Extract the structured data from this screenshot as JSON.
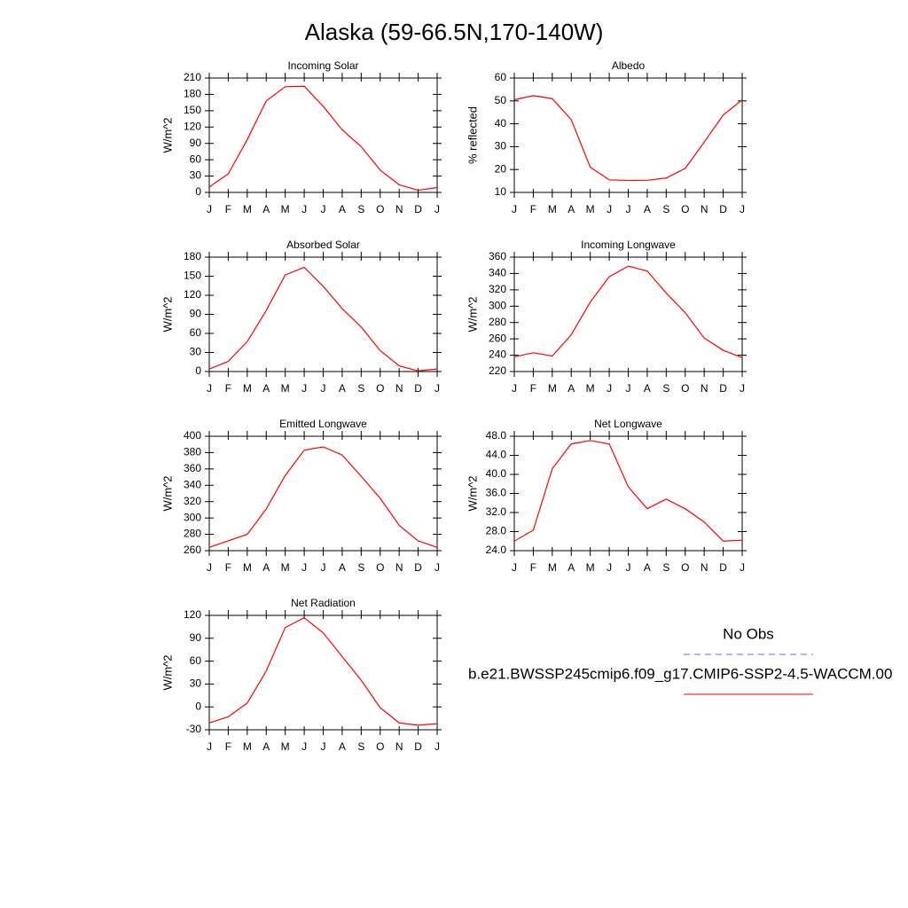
{
  "title": "Alaska (59-66.5N,170-140W)",
  "legend": [
    {
      "label": "No Obs",
      "color": "#6666ff",
      "dash": true
    },
    {
      "label": "b.e21.BWSSP245cmip6.f09_g17.CMIP6-SSP2-4.5-WACCM.00",
      "color": "#ff0000",
      "dash": false
    }
  ],
  "chart_data": [
    {
      "type": "line",
      "title": "Incoming Solar",
      "ylabel": "W/m^2",
      "categories": [
        "J",
        "F",
        "M",
        "A",
        "M",
        "J",
        "J",
        "A",
        "S",
        "O",
        "N",
        "D",
        "J"
      ],
      "color": "#ff0000",
      "values": [
        10,
        34,
        97,
        168,
        194,
        195,
        158,
        115,
        84,
        41,
        14,
        4,
        9
      ],
      "ylim": [
        0,
        210
      ],
      "yticks": [
        0,
        30,
        60,
        90,
        120,
        150,
        180,
        210
      ]
    },
    {
      "type": "line",
      "title": "Albedo",
      "ylabel": "% reflected",
      "categories": [
        "J",
        "F",
        "M",
        "A",
        "M",
        "J",
        "J",
        "A",
        "S",
        "O",
        "N",
        "D",
        "J"
      ],
      "color": "#ff0000",
      "values": [
        50.5,
        52.3,
        51,
        41.8,
        21,
        15.5,
        15.2,
        15.3,
        16.3,
        20.5,
        32,
        43.8,
        50.5
      ],
      "ylim": [
        10,
        60
      ],
      "yticks": [
        10,
        20,
        30,
        40,
        50,
        60
      ]
    },
    {
      "type": "line",
      "title": "Absorbed Solar",
      "ylabel": "W/m^2",
      "categories": [
        "J",
        "F",
        "M",
        "A",
        "M",
        "J",
        "J",
        "A",
        "S",
        "O",
        "N",
        "D",
        "J"
      ],
      "color": "#ff0000",
      "values": [
        4,
        16,
        47,
        96,
        152,
        164,
        134,
        99,
        70,
        33,
        9,
        1,
        4
      ],
      "ylim": [
        0,
        180
      ],
      "yticks": [
        0,
        30,
        60,
        90,
        120,
        150,
        180
      ]
    },
    {
      "type": "line",
      "title": "Incoming Longwave",
      "ylabel": "W/m^2",
      "categories": [
        "J",
        "F",
        "M",
        "A",
        "M",
        "J",
        "J",
        "A",
        "S",
        "O",
        "N",
        "D",
        "J"
      ],
      "color": "#ff0000",
      "values": [
        238,
        243,
        239,
        265,
        305,
        336,
        349,
        343,
        316,
        292,
        261,
        246,
        237
      ],
      "ylim": [
        220,
        360
      ],
      "yticks": [
        220,
        240,
        260,
        280,
        300,
        320,
        340,
        360
      ]
    },
    {
      "type": "line",
      "title": "Emitted Longwave",
      "ylabel": "W/m^2",
      "categories": [
        "J",
        "F",
        "M",
        "A",
        "M",
        "J",
        "J",
        "A",
        "S",
        "O",
        "N",
        "D",
        "J"
      ],
      "color": "#ff0000",
      "values": [
        264,
        272,
        280,
        311,
        352,
        383,
        387,
        377,
        351,
        324,
        291,
        272,
        264
      ],
      "ylim": [
        260,
        400
      ],
      "yticks": [
        260,
        280,
        300,
        320,
        340,
        360,
        380,
        400
      ]
    },
    {
      "type": "line",
      "title": "Net Longwave",
      "ylabel": "W/m^2",
      "categories": [
        "J",
        "F",
        "M",
        "A",
        "M",
        "J",
        "J",
        "A",
        "S",
        "O",
        "N",
        "D",
        "J"
      ],
      "color": "#ff0000",
      "values": [
        26,
        28.3,
        41.2,
        46.4,
        47.1,
        46.4,
        37.4,
        32.8,
        34.8,
        32.8,
        30,
        26,
        26.2
      ],
      "ylim": [
        24,
        48
      ],
      "yticks": [
        {
          "value": 24,
          "label": "24.0"
        },
        {
          "value": 28,
          "label": "28.0"
        },
        {
          "value": 32,
          "label": "32.0"
        },
        {
          "value": 36,
          "label": "36.0"
        },
        {
          "value": 40,
          "label": "40.0"
        },
        {
          "value": 44,
          "label": "44.0"
        },
        {
          "value": 48,
          "label": "48.0"
        }
      ]
    },
    {
      "type": "line",
      "title": "Net Radiation",
      "ylabel": "W/m^2",
      "categories": [
        "J",
        "F",
        "M",
        "A",
        "M",
        "J",
        "J",
        "A",
        "S",
        "O",
        "N",
        "D",
        "J"
      ],
      "color": "#ff0000",
      "values": [
        -21,
        -13,
        5,
        47,
        104,
        117,
        97,
        66,
        35,
        -1,
        -21,
        -24,
        -22
      ],
      "ylim": [
        -30,
        120
      ],
      "yticks": [
        -30,
        0,
        30,
        60,
        90,
        120
      ]
    }
  ]
}
